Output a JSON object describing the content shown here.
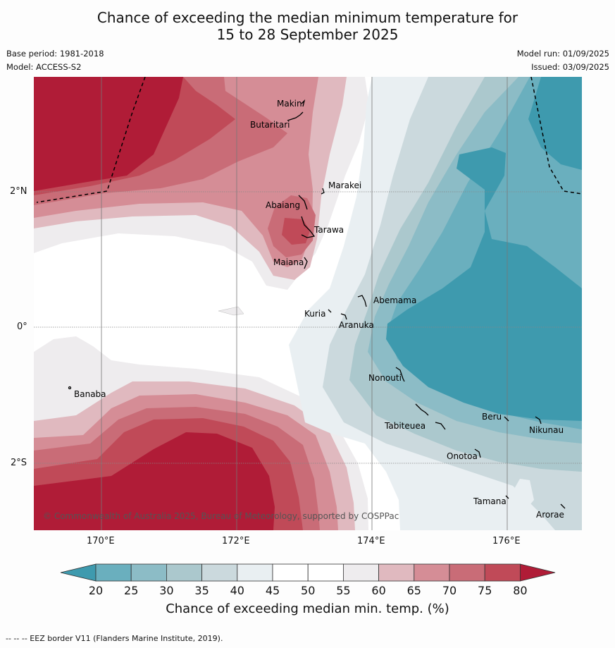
{
  "title": {
    "line1": "Chance of exceeding the median minimum temperature for",
    "line2": "15 to 28 September 2025"
  },
  "meta": {
    "base_period": "Base period: 1981-2018",
    "model": "Model: ACCESS-S2",
    "model_run": "Model run: 01/09/2025",
    "issued": "Issued: 03/09/2025"
  },
  "axes": {
    "lon_ticks": [
      "170°E",
      "172°E",
      "174°E",
      "176°E"
    ],
    "lat_ticks": [
      "2°N",
      "0°",
      "2°S"
    ]
  },
  "places": [
    "Makin",
    "Butaritari",
    "Marakei",
    "Abaiang",
    "Tarawa",
    "Maiana",
    "Abemama",
    "Kuria",
    "Aranuka",
    "Banaba",
    "Nonouti",
    "Beru",
    "Tabiteuea",
    "Nikunau",
    "Onotoa",
    "Tamana",
    "Arorae"
  ],
  "copyright": "© Commonwealth of Australia 2025, Bureau of Meteorology, supported by COSPPac",
  "colorbar": {
    "ticks": [
      "20",
      "25",
      "30",
      "35",
      "40",
      "45",
      "50",
      "55",
      "60",
      "65",
      "70",
      "75",
      "80"
    ],
    "label": "Chance of exceeding median min. temp. (%)",
    "colors": {
      "below20": "#3e9aae",
      "20-25": "#6aafbe",
      "25-30": "#8cbcc6",
      "30-35": "#abc8cd",
      "35-40": "#cbd9dd",
      "40-45": "#e9eff2",
      "45-55": "#ffffff",
      "55-60": "#eeecee",
      "60-65": "#e0b9bf",
      "65-70": "#d58d96",
      "70-75": "#c96c77",
      "75-80": "#c04a58",
      "above80": "#b01c37"
    }
  },
  "footer": "--  --  -- EEZ border V11 (Flanders Marine Institute, 2019)."
}
